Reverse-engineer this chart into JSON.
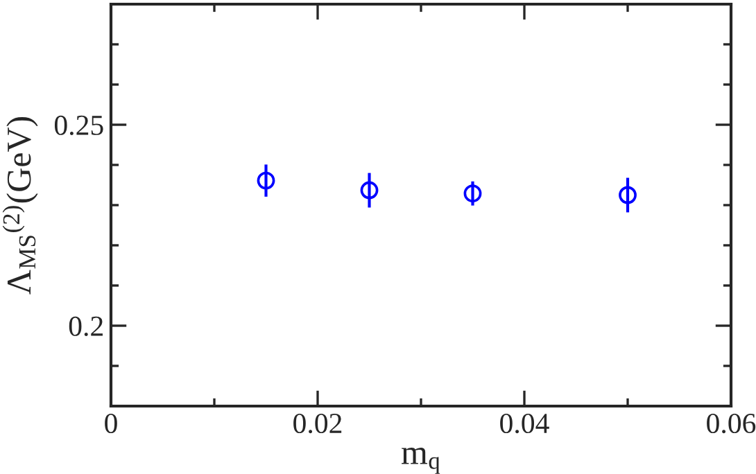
{
  "chart_data": {
    "type": "scatter",
    "xlabel": "m$_{q}$",
    "ylabel": "Λ$_{MS}$$^{(2)}$(GeV)",
    "x": [
      0.015,
      0.025,
      0.035,
      0.05
    ],
    "series": [
      {
        "color": "#0000ff",
        "values": [
          0.2361,
          0.2337,
          0.2329,
          0.2325
        ],
        "errors": [
          0.004,
          0.0043,
          0.003,
          0.0043
        ]
      }
    ],
    "marker": "circle",
    "xlim": [
      0,
      0.06
    ],
    "xticks": [
      0,
      0.02,
      0.04,
      0.06
    ],
    "ylim": [
      0.18,
      0.28
    ],
    "yticks": [
      0.2,
      0.25
    ],
    "grid": false,
    "legend": false
  }
}
